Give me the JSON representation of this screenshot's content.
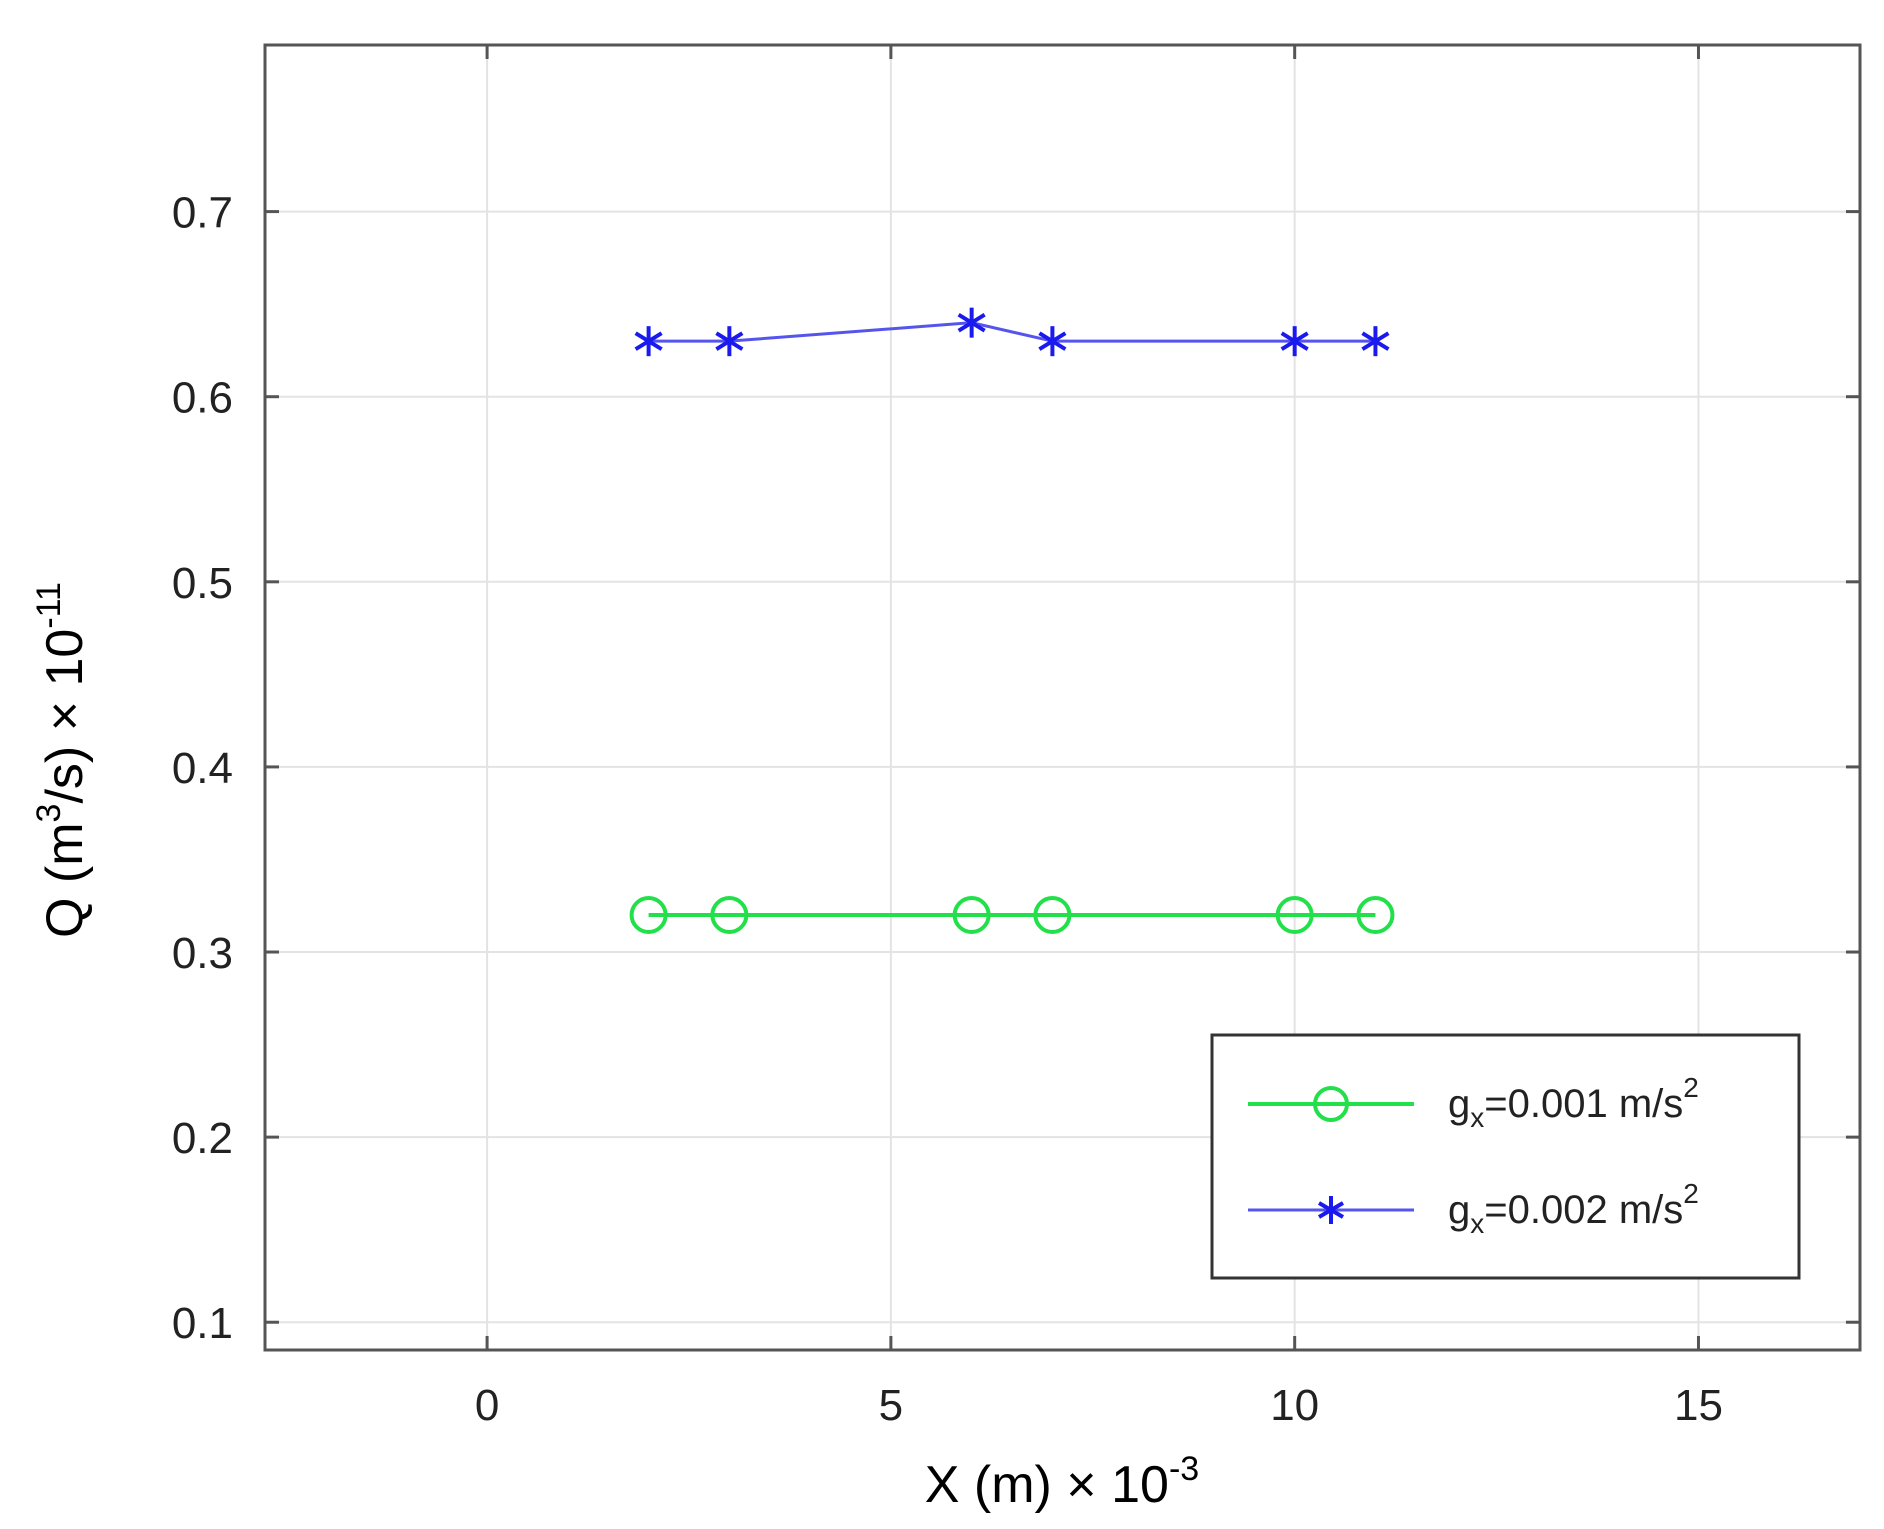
{
  "chart_data": {
    "type": "line",
    "xlabel": "X (m) × 10",
    "xlabel_exp": "-3",
    "ylabel_parts": [
      "Q (m",
      "3",
      "/s) × 10",
      "-11"
    ],
    "xlim": [
      -2.75,
      17.0
    ],
    "ylim": [
      0.085,
      0.79
    ],
    "xticks": [
      0,
      5,
      10,
      15
    ],
    "xtick_labels": [
      "0",
      "5",
      "10",
      "15"
    ],
    "yticks": [
      0.1,
      0.2,
      0.3,
      0.4,
      0.5,
      0.6,
      0.7
    ],
    "ytick_labels": [
      "0.1",
      "0.2",
      "0.3",
      "0.4",
      "0.5",
      "0.6",
      "0.7"
    ],
    "grid": true,
    "legend_position": "bottom-right",
    "series": [
      {
        "name_base": "g",
        "name_sub": "x",
        "name_text": "=0.001 m/s",
        "name_sup": "2",
        "color": "#22e04a",
        "marker": "circle",
        "x": [
          2,
          3,
          6,
          7,
          10,
          11
        ],
        "y": [
          0.32,
          0.32,
          0.32,
          0.32,
          0.32,
          0.32
        ]
      },
      {
        "name_base": "g",
        "name_sub": "x",
        "name_text": "=0.002 m/s",
        "name_sup": "2",
        "color": "#5555ee",
        "marker": "asterisk",
        "x": [
          2,
          3,
          6,
          7,
          10,
          11
        ],
        "y": [
          0.63,
          0.63,
          0.64,
          0.63,
          0.63,
          0.63
        ]
      }
    ]
  }
}
